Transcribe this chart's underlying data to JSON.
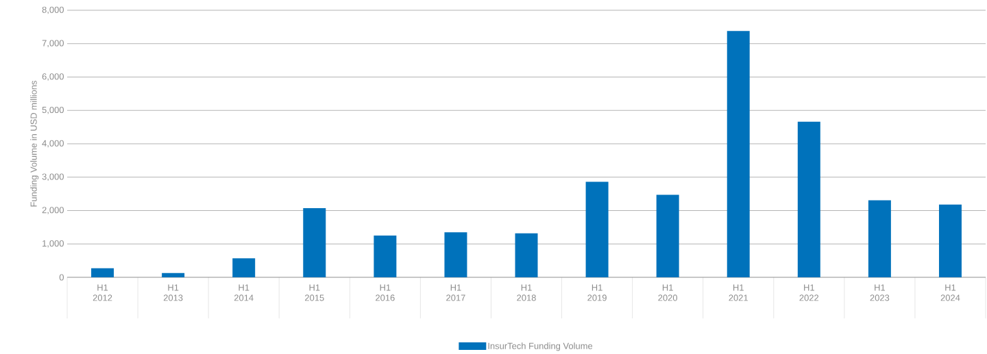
{
  "chart_data": {
    "type": "bar",
    "ylabel": "Funding Volume in USD millions",
    "categories": [
      "H1 2012",
      "H1 2013",
      "H1 2014",
      "H1 2015",
      "H1 2016",
      "H1 2017",
      "H1 2018",
      "H1 2019",
      "H1 2020",
      "H1 2021",
      "H1 2022",
      "H1 2023",
      "H1 2024"
    ],
    "series": [
      {
        "name": "InsurTech Funding Volume",
        "color": "#0072bb",
        "values": [
          270,
          130,
          570,
          2070,
          1250,
          1350,
          1320,
          2860,
          2470,
          7380,
          4660,
          2310,
          2180
        ]
      }
    ],
    "ylim": [
      0,
      8000
    ],
    "yticks": [
      0,
      {
        "value": 1000,
        "label": "1,000"
      },
      {
        "value": 2000,
        "label": "2,000"
      },
      {
        "value": 3000,
        "label": "3,000"
      },
      {
        "value": 4000,
        "label": "4,000"
      },
      {
        "value": 5000,
        "label": "5,000"
      },
      {
        "value": 6000,
        "label": "6,000"
      },
      {
        "value": 7000,
        "label": "7,000"
      },
      {
        "value": 8000,
        "label": "8,000"
      }
    ],
    "grid": "y",
    "legend": "bottom"
  }
}
